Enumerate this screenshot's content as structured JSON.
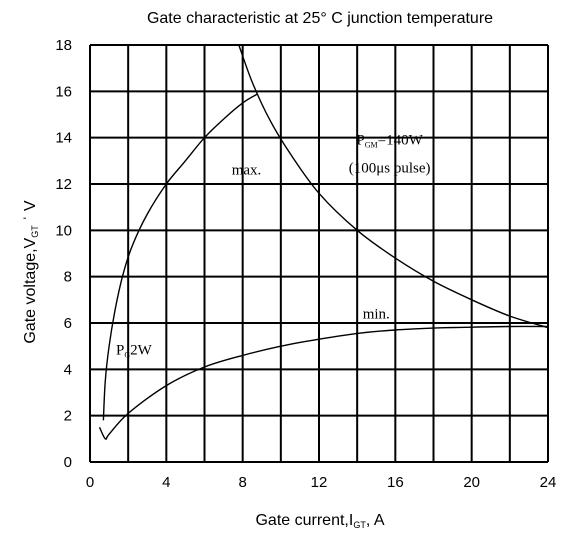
{
  "chart_data": {
    "type": "line",
    "title": "Gate characteristic at 25° C junction temperature",
    "title_text": "Gate characteristic at 25°  C junction temperature",
    "xlabel": "Gate current,I",
    "xlabel_sub": "GT",
    "xlabel_tail": ",  A",
    "ylabel": "Gate voltage,V",
    "ylabel_sub": "GT",
    "ylabel_tail": " ˈ V",
    "xlim": [
      0,
      24
    ],
    "ylim": [
      0,
      18
    ],
    "x_ticks": [
      0,
      4,
      8,
      12,
      16,
      20,
      24
    ],
    "y_ticks": [
      0,
      2,
      4,
      6,
      8,
      10,
      12,
      14,
      16,
      18
    ],
    "x_tick_labels": [
      "0",
      "4",
      "8",
      "12",
      "16",
      "20",
      "24"
    ],
    "y_tick_labels": [
      "0",
      "2",
      "4",
      "6",
      "8",
      "10",
      "12",
      "14",
      "16",
      "18"
    ],
    "grid": true,
    "series": [
      {
        "name": "max.",
        "x": [
          0.7,
          0.8,
          1.0,
          1.3,
          1.7,
          2.2,
          3.0,
          4.0,
          5.0,
          6.0,
          7.0,
          8.0,
          8.8
        ],
        "y": [
          1.8,
          3.5,
          5.0,
          6.5,
          8.0,
          9.3,
          10.7,
          12.0,
          13.0,
          14.0,
          14.8,
          15.5,
          15.9
        ]
      },
      {
        "name": "min.",
        "x": [
          0.5,
          0.8,
          1.0,
          2.0,
          4.0,
          6.0,
          8.0,
          10.0,
          12.0,
          14.0,
          16.0,
          18.0,
          20.0,
          22.0,
          24.0
        ],
        "y": [
          1.5,
          1.0,
          1.2,
          2.1,
          3.3,
          4.1,
          4.6,
          5.0,
          5.3,
          5.55,
          5.7,
          5.78,
          5.82,
          5.85,
          5.85
        ]
      },
      {
        "name": "P_GM=140W",
        "x": [
          7.8,
          8.5,
          9.4,
          10.5,
          12.0,
          14.0,
          16.0,
          18.0,
          20.0,
          22.0,
          24.0
        ],
        "y": [
          18.0,
          16.4,
          14.8,
          13.3,
          11.6,
          10.0,
          8.8,
          7.8,
          7.0,
          6.3,
          5.8
        ]
      }
    ],
    "annotations": [
      {
        "id": "max",
        "text": "max.",
        "x": 8.2,
        "y": 12.4
      },
      {
        "id": "min",
        "text": "min.",
        "x": 15.0,
        "y": 6.2
      },
      {
        "id": "pgm_main",
        "text": "P",
        "sub": "GM",
        "rest": "=140W",
        "x": 15.7,
        "y": 13.7
      },
      {
        "id": "pgm_pulse",
        "text": "(100μs pulse)",
        "x": 15.7,
        "y": 12.5
      },
      {
        "id": "pg",
        "text": "P",
        "sub": "G",
        "rest": "2W",
        "x": 2.3,
        "y": 4.65
      }
    ]
  }
}
